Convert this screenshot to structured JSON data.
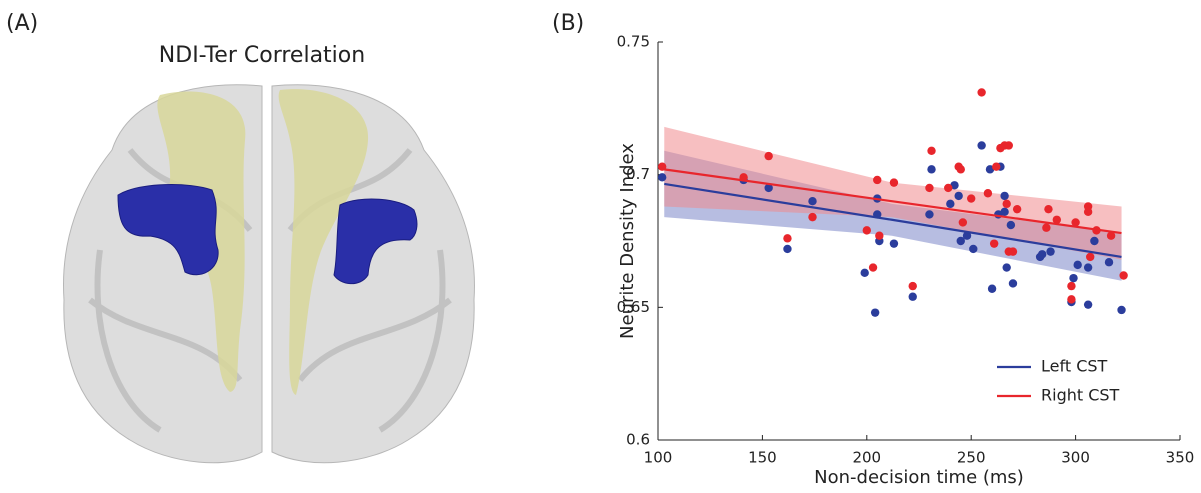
{
  "panel_labels": [
    "(A)",
    "(B)"
  ],
  "panel_a": {
    "title": "NDI-Ter Correlation"
  },
  "chart_data": {
    "type": "scatter",
    "x_label": "Non-decision time (ms)",
    "y_label": "Neurite Density Index",
    "xlim": [
      100,
      350
    ],
    "xticks": [
      100,
      150,
      200,
      250,
      300,
      350
    ],
    "ylim": [
      0.6,
      0.75
    ],
    "yticks": [
      0.6,
      0.65,
      0.7,
      0.75
    ],
    "legend": "lower right",
    "series": [
      {
        "name": "Left CST",
        "color": "#2b3d9c",
        "band_color": "#7c86c8",
        "x": [
          102,
          141,
          153,
          162,
          174,
          199,
          204,
          205,
          205,
          206,
          213,
          222,
          230,
          231,
          240,
          242,
          244,
          245,
          248,
          251,
          255,
          259,
          260,
          263,
          264,
          266,
          266,
          267,
          269,
          270,
          283,
          284,
          288,
          298,
          299,
          301,
          306,
          306,
          309,
          316,
          322
        ],
        "values": [
          0.699,
          0.698,
          0.695,
          0.672,
          0.69,
          0.663,
          0.648,
          0.691,
          0.685,
          0.675,
          0.674,
          0.654,
          0.685,
          0.702,
          0.689,
          0.696,
          0.692,
          0.675,
          0.677,
          0.672,
          0.711,
          0.702,
          0.657,
          0.685,
          0.703,
          0.686,
          0.692,
          0.665,
          0.681,
          0.659,
          0.669,
          0.67,
          0.671,
          0.652,
          0.661,
          0.666,
          0.665,
          0.651,
          0.675,
          0.667,
          0.649
        ],
        "fit": {
          "x": [
            103,
            212,
            322
          ],
          "y": [
            0.6965,
            0.683,
            0.669
          ],
          "lower": [
            0.684,
            0.677,
            0.66
          ],
          "upper": [
            0.709,
            0.689,
            0.678
          ]
        }
      },
      {
        "name": "Right CST",
        "color": "#e8262c",
        "band_color": "#f08a8e",
        "x": [
          102,
          141,
          153,
          162,
          174,
          200,
          203,
          205,
          206,
          213,
          222,
          230,
          231,
          239,
          244,
          245,
          246,
          250,
          255,
          258,
          261,
          262,
          264,
          266,
          267,
          268,
          268,
          270,
          272,
          286,
          287,
          291,
          298,
          298,
          300,
          306,
          306,
          307,
          310,
          317,
          323
        ],
        "values": [
          0.703,
          0.699,
          0.707,
          0.676,
          0.684,
          0.679,
          0.665,
          0.698,
          0.677,
          0.697,
          0.658,
          0.695,
          0.709,
          0.695,
          0.703,
          0.702,
          0.682,
          0.691,
          0.731,
          0.693,
          0.674,
          0.703,
          0.71,
          0.711,
          0.689,
          0.711,
          0.671,
          0.671,
          0.687,
          0.68,
          0.687,
          0.683,
          0.653,
          0.658,
          0.682,
          0.688,
          0.686,
          0.669,
          0.679,
          0.677,
          0.662
        ],
        "fit": {
          "x": [
            103,
            212,
            322
          ],
          "y": [
            0.702,
            0.69,
            0.678
          ],
          "lower": [
            0.688,
            0.684,
            0.668
          ],
          "upper": [
            0.718,
            0.697,
            0.688
          ]
        }
      }
    ]
  }
}
